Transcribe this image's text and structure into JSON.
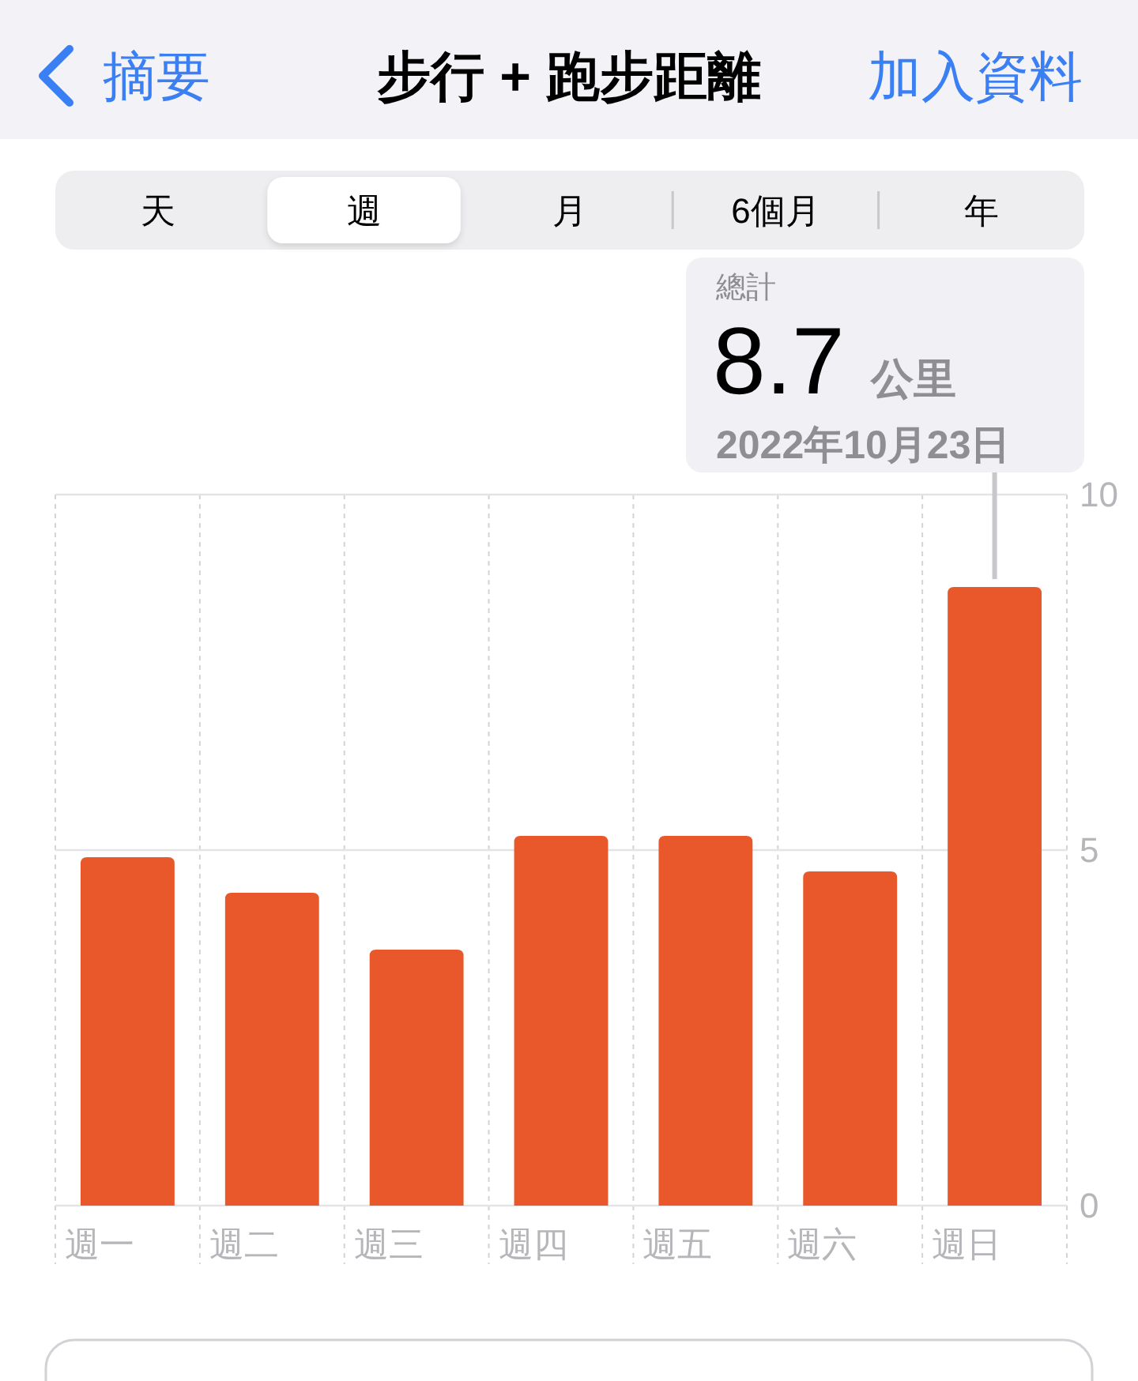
{
  "chart_data": {
    "type": "bar",
    "title": "步行 + 跑步距離",
    "categories": [
      "週一",
      "週二",
      "週三",
      "週四",
      "週五",
      "週六",
      "週日"
    ],
    "values": [
      4.9,
      4.4,
      3.6,
      5.2,
      5.2,
      4.7,
      8.7
    ],
    "color": "#e9582b",
    "ylim": [
      0,
      10
    ],
    "yticks": [
      0,
      5,
      10
    ],
    "grid": true,
    "annotations": [
      "摘要",
      "加入資料",
      "天",
      "週",
      "月",
      "6個月",
      "年",
      "總計",
      {
        "text": "8.7 公里",
        "x": "週日",
        "y": 8.7
      },
      "2022年10月23日"
    ]
  }
}
